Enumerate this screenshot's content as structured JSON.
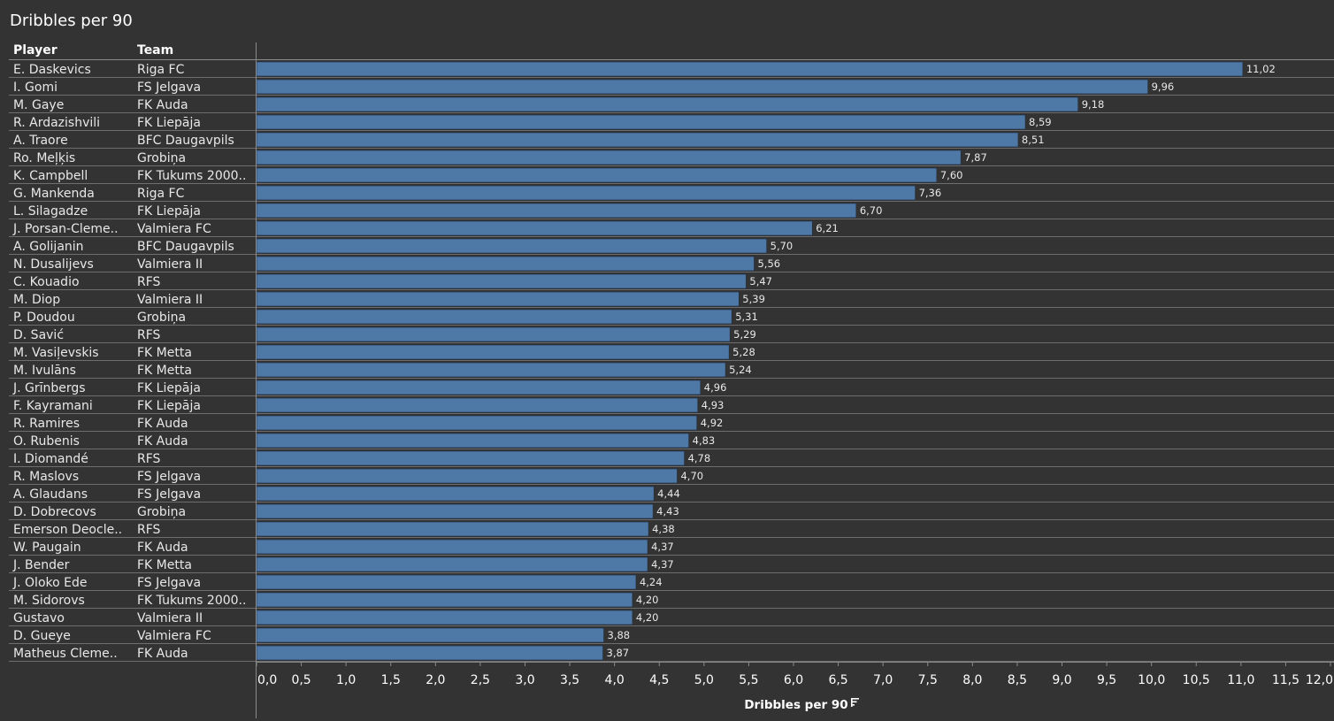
{
  "title": "Dribbles per 90",
  "columns": {
    "player": "Player",
    "team": "Team"
  },
  "chart_data": {
    "type": "bar",
    "orientation": "horizontal",
    "title": "Dribbles per 90",
    "xlabel": "Dribbles per 90",
    "sort_icon": "sort-descending-icon",
    "xlim": [
      0,
      12
    ],
    "tick_step": 0.5,
    "bar_color": "#4e79a7",
    "grid": false,
    "rows": [
      {
        "player": "E. Daskevics",
        "team": "Riga FC",
        "value": 11.02,
        "label": "11,02"
      },
      {
        "player": "I. Gomi",
        "team": "FS Jelgava",
        "value": 9.96,
        "label": "9,96"
      },
      {
        "player": "M. Gaye",
        "team": "FK Auda",
        "value": 9.18,
        "label": "9,18"
      },
      {
        "player": "R. Ardazishvili",
        "team": "FK Liepāja",
        "value": 8.59,
        "label": "8,59"
      },
      {
        "player": "A. Traore",
        "team": "BFC Daugavpils",
        "value": 8.51,
        "label": "8,51"
      },
      {
        "player": "Ro. Meļķis",
        "team": "Grobiņa",
        "value": 7.87,
        "label": "7,87"
      },
      {
        "player": "K. Campbell",
        "team": "FK Tukums 2000..",
        "value": 7.6,
        "label": "7,60"
      },
      {
        "player": "G. Mankenda",
        "team": "Riga FC",
        "value": 7.36,
        "label": "7,36"
      },
      {
        "player": "L. Silagadze",
        "team": "FK Liepāja",
        "value": 6.7,
        "label": "6,70"
      },
      {
        "player": "J. Porsan-Cleme..",
        "team": "Valmiera FC",
        "value": 6.21,
        "label": "6,21"
      },
      {
        "player": "A. Golijanin",
        "team": "BFC Daugavpils",
        "value": 5.7,
        "label": "5,70"
      },
      {
        "player": "N. Dusalijevs",
        "team": "Valmiera II",
        "value": 5.56,
        "label": "5,56"
      },
      {
        "player": "C. Kouadio",
        "team": "RFS",
        "value": 5.47,
        "label": "5,47"
      },
      {
        "player": "M. Diop",
        "team": "Valmiera II",
        "value": 5.39,
        "label": "5,39"
      },
      {
        "player": "P. Doudou",
        "team": "Grobiņa",
        "value": 5.31,
        "label": "5,31"
      },
      {
        "player": "D. Savić",
        "team": "RFS",
        "value": 5.29,
        "label": "5,29"
      },
      {
        "player": "M. Vasiļevskis",
        "team": "FK Metta",
        "value": 5.28,
        "label": "5,28"
      },
      {
        "player": "M. Ivulāns",
        "team": "FK Metta",
        "value": 5.24,
        "label": "5,24"
      },
      {
        "player": "J. Grīnbergs",
        "team": "FK Liepāja",
        "value": 4.96,
        "label": "4,96"
      },
      {
        "player": "F. Kayramani",
        "team": "FK Liepāja",
        "value": 4.93,
        "label": "4,93"
      },
      {
        "player": "R. Ramires",
        "team": "FK Auda",
        "value": 4.92,
        "label": "4,92"
      },
      {
        "player": "O. Rubenis",
        "team": "FK Auda",
        "value": 4.83,
        "label": "4,83"
      },
      {
        "player": "I. Diomandé",
        "team": "RFS",
        "value": 4.78,
        "label": "4,78"
      },
      {
        "player": "R. Maslovs",
        "team": "FS Jelgava",
        "value": 4.7,
        "label": "4,70"
      },
      {
        "player": "A. Glaudans",
        "team": "FS Jelgava",
        "value": 4.44,
        "label": "4,44"
      },
      {
        "player": "D. Dobrecovs",
        "team": "Grobiņa",
        "value": 4.43,
        "label": "4,43"
      },
      {
        "player": "Emerson Deocle..",
        "team": "RFS",
        "value": 4.38,
        "label": "4,38"
      },
      {
        "player": "W. Paugain",
        "team": "FK Auda",
        "value": 4.37,
        "label": "4,37"
      },
      {
        "player": "J. Bender",
        "team": "FK Metta",
        "value": 4.37,
        "label": "4,37"
      },
      {
        "player": "J. Oloko Ede",
        "team": "FS Jelgava",
        "value": 4.24,
        "label": "4,24"
      },
      {
        "player": "M. Sidorovs",
        "team": "FK Tukums 2000..",
        "value": 4.2,
        "label": "4,20"
      },
      {
        "player": "Gustavo",
        "team": "Valmiera II",
        "value": 4.2,
        "label": "4,20"
      },
      {
        "player": "D. Gueye",
        "team": "Valmiera FC",
        "value": 3.88,
        "label": "3,88"
      },
      {
        "player": "Matheus Cleme..",
        "team": "FK Auda",
        "value": 3.87,
        "label": "3,87"
      }
    ],
    "ticks": [
      "0,0",
      "0,5",
      "1,0",
      "1,5",
      "2,0",
      "2,5",
      "3,0",
      "3,5",
      "4,0",
      "4,5",
      "5,0",
      "5,5",
      "6,0",
      "6,5",
      "7,0",
      "7,5",
      "8,0",
      "8,5",
      "9,0",
      "9,5",
      "10,0",
      "10,5",
      "11,0",
      "11,5",
      "12,0"
    ]
  }
}
